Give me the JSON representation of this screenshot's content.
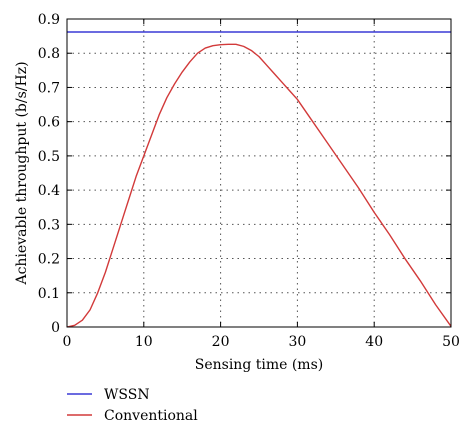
{
  "chart_data": {
    "type": "line",
    "xlabel": "Sensing time (ms)",
    "ylabel": "Achievable throughput (b/s/Hz)",
    "xlim": [
      0,
      50
    ],
    "ylim": [
      0,
      0.9
    ],
    "xticks": [
      0,
      10,
      20,
      30,
      40,
      50
    ],
    "yticks": [
      0,
      0.1,
      0.2,
      0.3,
      0.4,
      0.5,
      0.6,
      0.7,
      0.8,
      0.9
    ],
    "xtick_labels": [
      "0",
      "10",
      "20",
      "30",
      "40",
      "50"
    ],
    "ytick_labels": [
      "0",
      "0.1",
      "0.2",
      "0.3",
      "0.4",
      "0.5",
      "0.6",
      "0.7",
      "0.8",
      "0.9"
    ],
    "grid": true,
    "legend_position": "bottom",
    "series": [
      {
        "name": "WSSN",
        "color": "#3a3ad6",
        "x": [
          0,
          50
        ],
        "y": [
          0.862,
          0.862
        ]
      },
      {
        "name": "Conventional",
        "color": "#d23a3a",
        "x": [
          0,
          1,
          2,
          3,
          4,
          5,
          6,
          7,
          8,
          9,
          10,
          11,
          12,
          13,
          14,
          15,
          16,
          17,
          18,
          19,
          20,
          21,
          22,
          23,
          24,
          25,
          26,
          27,
          28,
          29,
          30,
          32,
          34,
          36,
          38,
          40,
          42,
          44,
          46,
          48,
          50
        ],
        "y": [
          0,
          0.005,
          0.02,
          0.05,
          0.1,
          0.16,
          0.23,
          0.3,
          0.37,
          0.44,
          0.5,
          0.56,
          0.62,
          0.67,
          0.71,
          0.745,
          0.775,
          0.8,
          0.815,
          0.822,
          0.825,
          0.826,
          0.826,
          0.82,
          0.808,
          0.79,
          0.765,
          0.74,
          0.715,
          0.69,
          0.665,
          0.6,
          0.535,
          0.47,
          0.405,
          0.335,
          0.27,
          0.2,
          0.135,
          0.065,
          0.002
        ]
      }
    ]
  }
}
